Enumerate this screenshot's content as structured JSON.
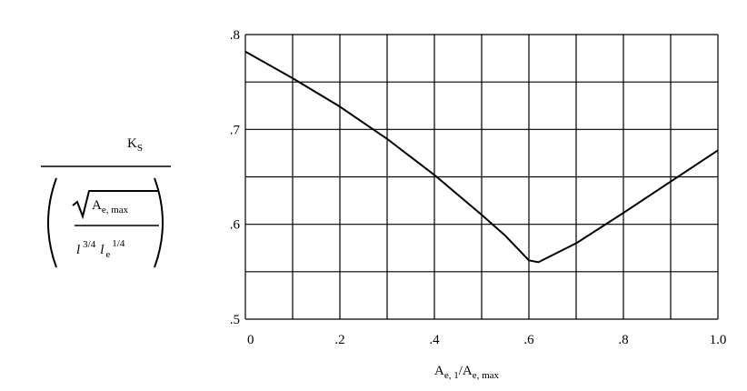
{
  "chart_data": {
    "type": "line",
    "x": [
      0,
      0.1,
      0.2,
      0.3,
      0.4,
      0.5,
      0.55,
      0.6,
      0.62,
      0.7,
      0.8,
      0.9,
      1.0
    ],
    "series": [
      {
        "color": "#000000",
        "values": [
          0.782,
          0.754,
          0.724,
          0.69,
          0.652,
          0.61,
          0.588,
          0.562,
          0.56,
          0.58,
          0.612,
          0.645,
          0.678
        ]
      }
    ],
    "xlim": [
      0,
      1.0
    ],
    "ylim": [
      0.5,
      0.8
    ],
    "xticks": [
      0,
      {
        "value": 0.2,
        "label": ".2"
      },
      {
        "value": 0.4,
        "label": ".4"
      },
      {
        "value": 0.6,
        "label": ".6"
      },
      {
        "value": 0.8,
        "label": ".8"
      },
      {
        "value": 1.0,
        "label": "1.0"
      }
    ],
    "yticks": [
      {
        "value": 0.5,
        "label": ".5"
      },
      {
        "value": 0.6,
        "label": ".6"
      },
      {
        "value": 0.7,
        "label": ".7"
      },
      {
        "value": 0.8,
        "label": ".8"
      }
    ],
    "xgrid": [
      0,
      0.1,
      0.2,
      0.3,
      0.4,
      0.5,
      0.6,
      0.7,
      0.8,
      0.9,
      1.0
    ],
    "ygrid": [
      0.5,
      0.55,
      0.6,
      0.65,
      0.7,
      0.75,
      0.8
    ],
    "x_label": [
      {
        "text": "A",
        "sub": "e, 1"
      },
      {
        "text": "/A",
        "sub": "e, max"
      }
    ],
    "y_label": {
      "numerator": {
        "text": "K",
        "sub": "S"
      },
      "radical": {
        "text": "A",
        "sub": "e, max"
      },
      "terms": [
        {
          "text": "l",
          "sup": "3/4"
        },
        {
          "text": "l",
          "sub": "e",
          "sup": "1/4"
        }
      ]
    }
  }
}
